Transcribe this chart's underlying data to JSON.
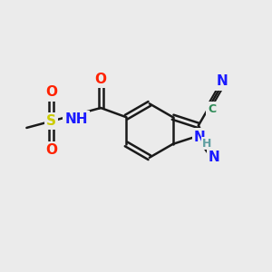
{
  "bg_color": "#ebebeb",
  "bond_color": "#1a1a1a",
  "bond_width": 1.8,
  "atom_colors": {
    "N": "#1a1aff",
    "O": "#ff2200",
    "S": "#cccc00",
    "C_cyano": "#2e8b57",
    "H": "#5f9ea0",
    "black": "#1a1a1a"
  },
  "font_size_atom": 11,
  "font_size_small": 9,
  "font_size_h": 9
}
